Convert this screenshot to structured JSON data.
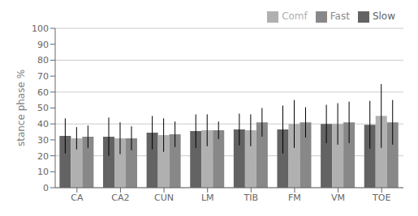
{
  "chart_data": {
    "type": "bar",
    "categories": [
      "CA",
      "CA2",
      "CUN",
      "LM",
      "TIB",
      "FM",
      "VM",
      "TOE"
    ],
    "series": [
      {
        "name": "Slow",
        "color": "#636363",
        "values": [
          32.5,
          32.0,
          34.5,
          35.5,
          36.5,
          36.5,
          40.0,
          39.5
        ],
        "errors": [
          11.0,
          12.0,
          10.5,
          10.5,
          10.0,
          15.0,
          12.0,
          15.0
        ]
      },
      {
        "name": "Comf",
        "color": "#b0b0b0",
        "values": [
          31.0,
          31.0,
          33.0,
          36.0,
          36.0,
          40.0,
          40.0,
          45.0
        ],
        "errors": [
          7.0,
          10.0,
          10.5,
          10.0,
          10.0,
          15.0,
          13.0,
          20.0
        ]
      },
      {
        "name": "Fast",
        "color": "#888888",
        "values": [
          32.0,
          31.0,
          33.5,
          36.0,
          41.0,
          41.0,
          41.0,
          41.0
        ],
        "errors": [
          7.0,
          7.5,
          8.0,
          5.5,
          9.0,
          9.5,
          13.0,
          14.0
        ]
      }
    ],
    "ylabel": "stance phase %",
    "ylim": [
      0,
      100
    ],
    "yticks": [
      0,
      10,
      20,
      30,
      40,
      50,
      60,
      70,
      80,
      90,
      100
    ],
    "grid": true,
    "legend": "upper right"
  }
}
